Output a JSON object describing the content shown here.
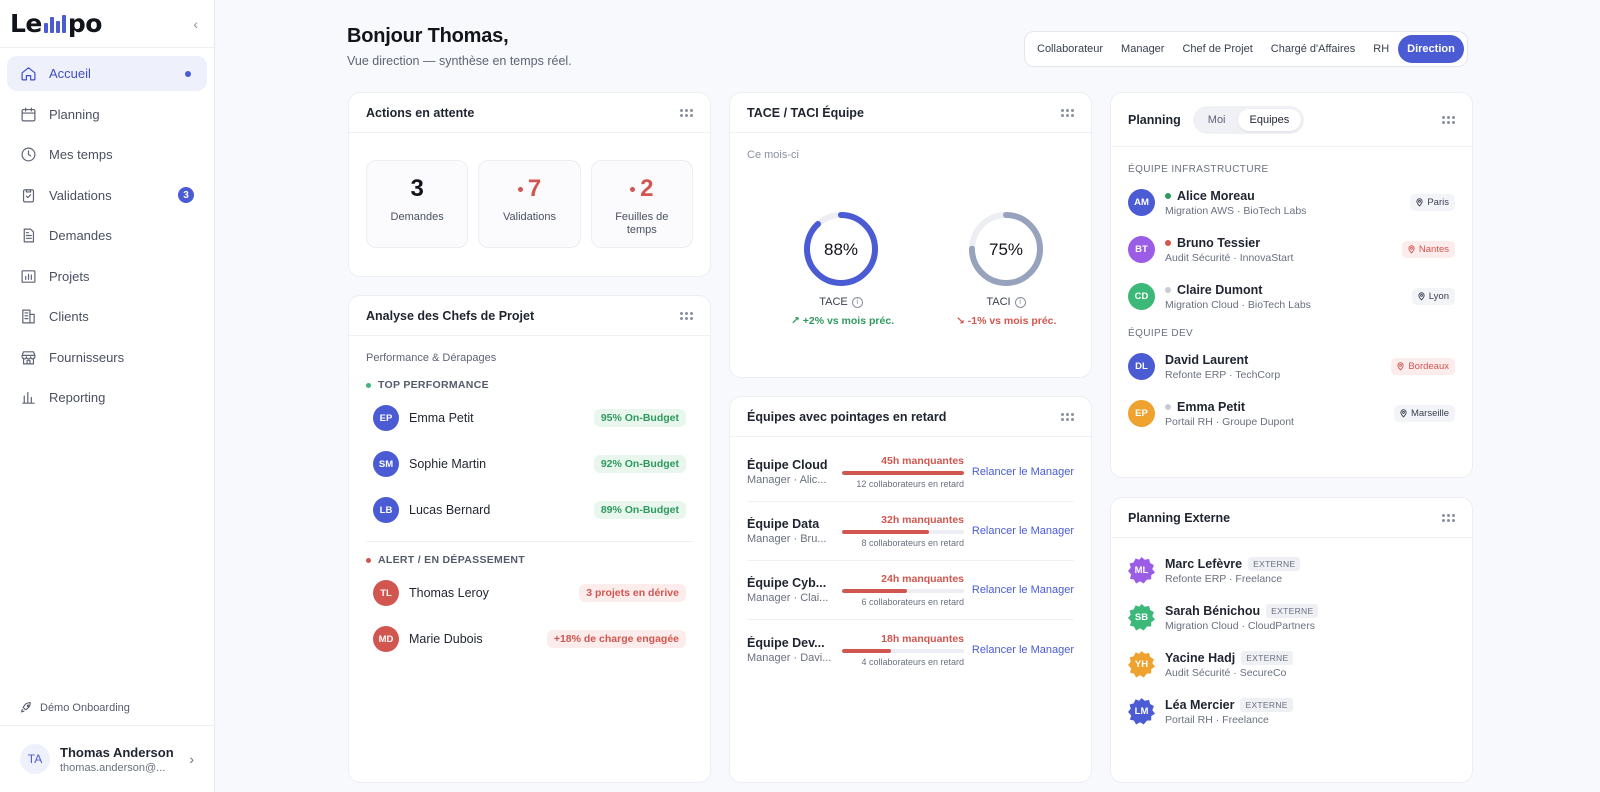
{
  "brand": {
    "logo_left": "Le",
    "logo_right": "po"
  },
  "sidebar": {
    "items": [
      {
        "label": "Accueil",
        "icon": "home-icon"
      },
      {
        "label": "Planning",
        "icon": "calendar-icon"
      },
      {
        "label": "Mes temps",
        "icon": "clock-icon"
      },
      {
        "label": "Validations",
        "icon": "clipboard-check-icon",
        "badge": "3"
      },
      {
        "label": "Demandes",
        "icon": "document-icon"
      },
      {
        "label": "Projets",
        "icon": "chart-folder-icon"
      },
      {
        "label": "Clients",
        "icon": "building-icon"
      },
      {
        "label": "Fournisseurs",
        "icon": "store-icon"
      },
      {
        "label": "Reporting",
        "icon": "bar-chart-icon"
      }
    ],
    "onboarding": "Démo Onboarding",
    "user": {
      "initials": "TA",
      "name": "Thomas Anderson",
      "email": "thomas.anderson@..."
    }
  },
  "header": {
    "title": "Bonjour Thomas,",
    "subtitle": "Vue direction — synthèse en temps réel.",
    "roles": [
      "Collaborateur",
      "Manager",
      "Chef de Projet",
      "Chargé d'Affaires",
      "RH",
      "Direction"
    ],
    "active_role": "Direction"
  },
  "actions": {
    "title": "Actions en attente",
    "stats": [
      {
        "value": "3",
        "label": "Demandes"
      },
      {
        "value": "7",
        "label": "Validations"
      },
      {
        "value": "2",
        "label": "Feuilles de temps"
      }
    ]
  },
  "analyse": {
    "title": "Analyse des Chefs de Projet",
    "subtitle": "Performance & Dérapages",
    "top_label": "TOP PERFORMANCE",
    "top": [
      {
        "initials": "EP",
        "name": "Emma Petit",
        "pill": "95% On-Budget",
        "color": "#4a5bd4"
      },
      {
        "initials": "SM",
        "name": "Sophie Martin",
        "pill": "92% On-Budget",
        "color": "#4a5bd4"
      },
      {
        "initials": "LB",
        "name": "Lucas Bernard",
        "pill": "89% On-Budget",
        "color": "#4a5bd4"
      }
    ],
    "alert_label": "ALERT / EN DÉPASSEMENT",
    "alert": [
      {
        "initials": "TL",
        "name": "Thomas Leroy",
        "pill": "3 projets en dérive",
        "color": "#d0564f"
      },
      {
        "initials": "MD",
        "name": "Marie Dubois",
        "pill": "+18% de charge engagée",
        "color": "#d0564f"
      }
    ]
  },
  "tace": {
    "title": "TACE / TACI Équipe",
    "period": "Ce mois-ci",
    "gauges": [
      {
        "label": "TACE",
        "value_text": "88%",
        "value": 0.88,
        "trend": "+2% vs mois préc.",
        "dir": "up",
        "color": "#4a5bd4"
      },
      {
        "label": "TACI",
        "value_text": "75%",
        "value": 0.75,
        "trend": "-1% vs mois préc.",
        "dir": "down",
        "color": "#97a3bd"
      }
    ]
  },
  "late": {
    "title": "Équipes avec pointages en retard",
    "action": "Relancer le Manager",
    "rows": [
      {
        "team": "Équipe Cloud",
        "manager": "Manager · Alic...",
        "hours": "45h manquantes",
        "fill": 1.0,
        "count": "12 collaborateurs en retard"
      },
      {
        "team": "Équipe Data",
        "manager": "Manager · Bru...",
        "hours": "32h manquantes",
        "fill": 0.71,
        "count": "8 collaborateurs en retard"
      },
      {
        "team": "Équipe Cyb...",
        "manager": "Manager · Clai...",
        "hours": "24h manquantes",
        "fill": 0.53,
        "count": "6 collaborateurs en retard"
      },
      {
        "team": "Équipe Dev...",
        "manager": "Manager · Davi...",
        "hours": "18h manquantes",
        "fill": 0.4,
        "count": "4 collaborateurs en retard"
      }
    ]
  },
  "planning": {
    "title": "Planning",
    "tabs": [
      "Moi",
      "Equipes"
    ],
    "active_tab": "Equipes",
    "groups": [
      {
        "label": "ÉQUIPE INFRASTRUCTURE",
        "people": [
          {
            "initials": "AM",
            "name": "Alice Moreau",
            "project": "Migration AWS · BioTech Labs",
            "loc": "Paris",
            "status": "#2f9a5e",
            "color": "#4a5bd4",
            "loc_alert": false
          },
          {
            "initials": "BT",
            "name": "Bruno Tessier",
            "project": "Audit Sécurité · InnovaStart",
            "loc": "Nantes",
            "status": "#d0564f",
            "color": "#9b5de5",
            "loc_alert": true
          },
          {
            "initials": "CD",
            "name": "Claire Dumont",
            "project": "Migration Cloud · BioTech Labs",
            "loc": "Lyon",
            "status": "#c8ccd6",
            "color": "#3cb878",
            "loc_alert": false
          }
        ]
      },
      {
        "label": "ÉQUIPE DEV",
        "people": [
          {
            "initials": "DL",
            "name": "David Laurent",
            "project": "Refonte ERP · TechCorp",
            "loc": "Bordeaux",
            "status": null,
            "color": "#4a5bd4",
            "loc_alert": true
          },
          {
            "initials": "EP",
            "name": "Emma Petit",
            "project": "Portail RH · Groupe Dupont",
            "loc": "Marseille",
            "status": "#c8ccd6",
            "color": "#f0a22e",
            "loc_alert": false
          }
        ]
      }
    ]
  },
  "external": {
    "title": "Planning Externe",
    "badge": "EXTERNE",
    "people": [
      {
        "initials": "ML",
        "name": "Marc Lefèvre",
        "project": "Refonte ERP · Freelance",
        "color": "#9b5de5"
      },
      {
        "initials": "SB",
        "name": "Sarah Bénichou",
        "project": "Migration Cloud · CloudPartners",
        "color": "#3cb878"
      },
      {
        "initials": "YH",
        "name": "Yacine Hadj",
        "project": "Audit Sécurité · SecureCo",
        "color": "#f0a22e"
      },
      {
        "initials": "LM",
        "name": "Léa Mercier",
        "project": "Portail RH · Freelance",
        "color": "#4a5bd4"
      }
    ]
  }
}
